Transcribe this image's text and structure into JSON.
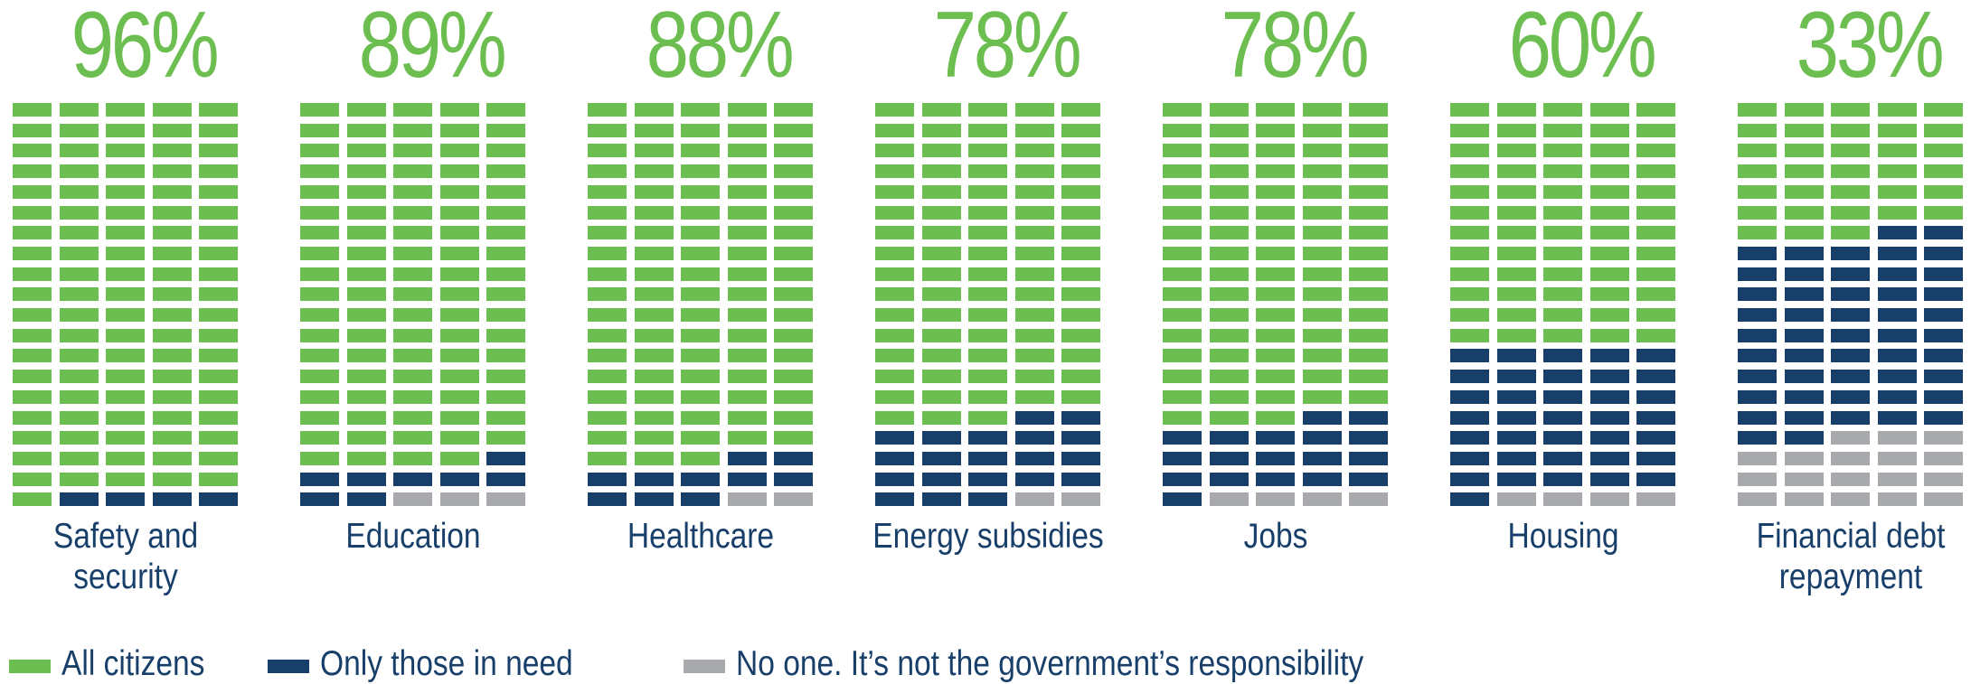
{
  "colors": {
    "all_citizens": "#6BBE4F",
    "only_in_need": "#173F6A",
    "no_one": "#A7A9AC",
    "percent_text": "#6BBE4F",
    "label_text": "#173F6A"
  },
  "legend": [
    {
      "key": "all_citizens",
      "label": "All citizens"
    },
    {
      "key": "only_in_need",
      "label": "Only those in need"
    },
    {
      "key": "no_one",
      "label": "No one. It’s not the government’s responsibility"
    }
  ],
  "chart_data": {
    "type": "waffle",
    "unit": "%",
    "cells_per_chart": 100,
    "grid": {
      "rows": 20,
      "columns": 5
    },
    "series": [
      {
        "key": "all_citizens",
        "name": "All citizens"
      },
      {
        "key": "only_in_need",
        "name": "Only those in need"
      },
      {
        "key": "no_one",
        "name": "No one. It’s not the government’s responsibility"
      }
    ],
    "categories": [
      {
        "label_lines": [
          "Safety and",
          "security"
        ],
        "percent_label": "96%",
        "values": [
          96,
          4,
          0
        ]
      },
      {
        "label_lines": [
          "Education"
        ],
        "percent_label": "89%",
        "values": [
          89,
          8,
          3
        ]
      },
      {
        "label_lines": [
          "Healthcare"
        ],
        "percent_label": "88%",
        "values": [
          88,
          10,
          2
        ]
      },
      {
        "label_lines": [
          "Energy subsidies"
        ],
        "percent_label": "78%",
        "values": [
          78,
          20,
          2
        ]
      },
      {
        "label_lines": [
          "Jobs"
        ],
        "percent_label": "78%",
        "values": [
          78,
          18,
          4
        ]
      },
      {
        "label_lines": [
          "Housing"
        ],
        "percent_label": "60%",
        "values": [
          60,
          36,
          4
        ]
      },
      {
        "label_lines": [
          "Financial debt",
          "repayment"
        ],
        "percent_label": "33%",
        "values": [
          33,
          49,
          18
        ]
      }
    ]
  }
}
